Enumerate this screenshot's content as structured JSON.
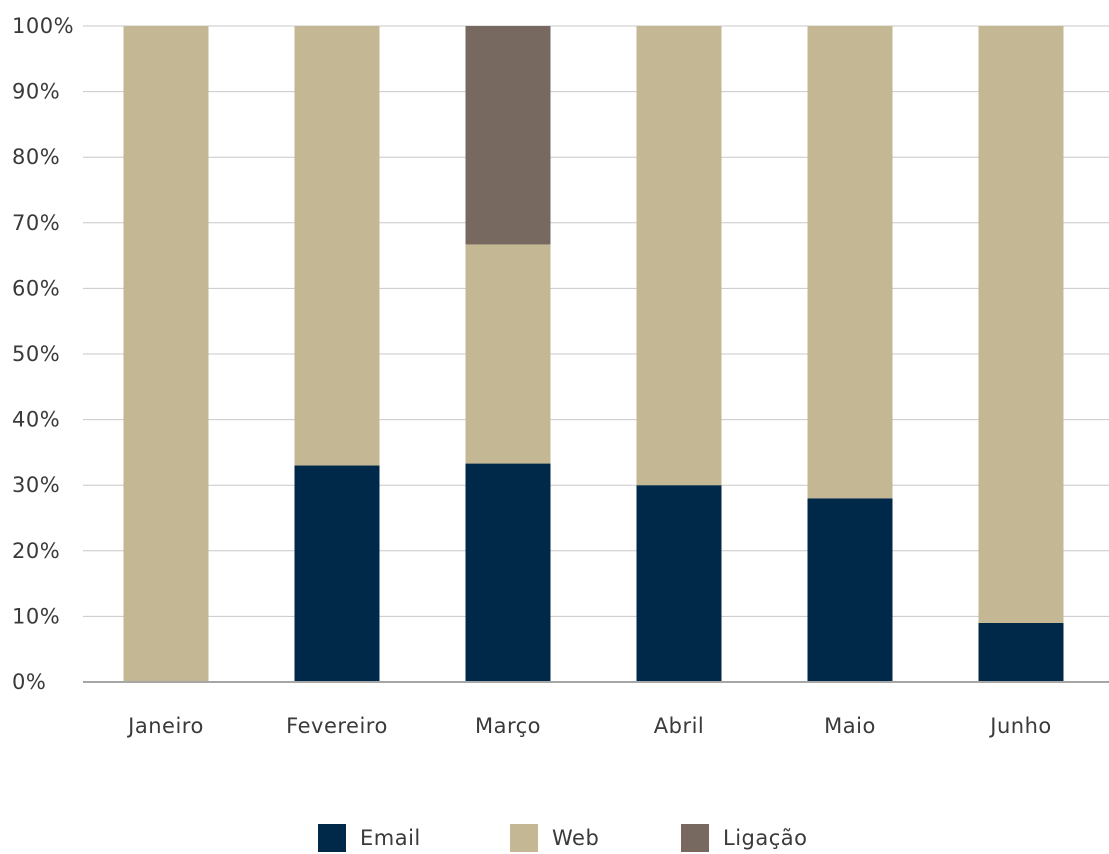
{
  "chart_data": {
    "type": "bar",
    "stacked": true,
    "normalized": true,
    "categories": [
      "Janeiro",
      "Fevereiro",
      "Março",
      "Abril",
      "Maio",
      "Junho"
    ],
    "series": [
      {
        "name": "Email",
        "color": "#002949",
        "values": [
          0,
          33,
          33.3,
          30,
          28,
          9
        ]
      },
      {
        "name": "Web",
        "color": "#c4b793",
        "values": [
          100,
          67,
          33.4,
          70,
          72,
          91
        ]
      },
      {
        "name": "Ligação",
        "color": "#776960",
        "values": [
          0,
          0,
          33.3,
          0,
          0,
          0
        ]
      }
    ],
    "y_ticks": [
      "0%",
      "10%",
      "20%",
      "30%",
      "40%",
      "50%",
      "60%",
      "70%",
      "80%",
      "90%",
      "100%"
    ],
    "ylim": [
      0,
      100
    ],
    "grid": true,
    "legend": "bottom-center",
    "title": "",
    "xlabel": "",
    "ylabel": ""
  }
}
